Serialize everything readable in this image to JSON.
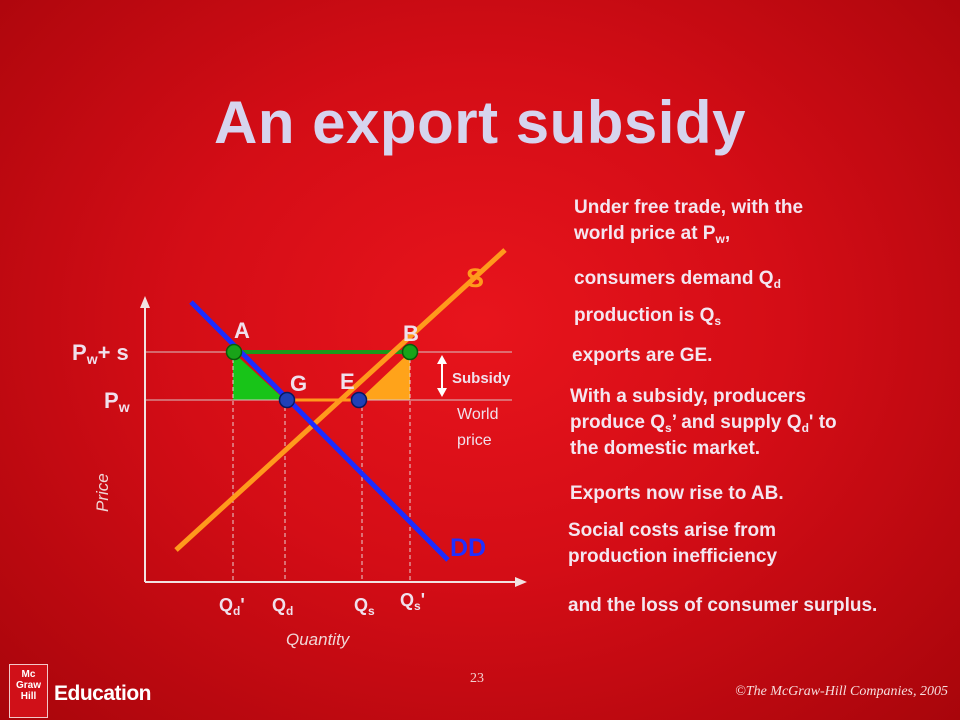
{
  "slide": {
    "title": "An export subsidy",
    "page_number": "23",
    "copyright": "©The McGraw-Hill Companies, 2005",
    "logo_lines": [
      "Mc",
      "Graw",
      "Hill"
    ],
    "logo_text": "Education"
  },
  "notes": [
    [
      "Under free trade, with the",
      "world price at P",
      "w",
      ","
    ],
    [
      "consumers demand Q",
      "d"
    ],
    [
      "production is Q",
      "s"
    ],
    [
      "exports are GE."
    ],
    [
      "With a subsidy, producers",
      "produce Q",
      "s",
      "’ and  supply Q",
      "d",
      "' to",
      "the domestic market."
    ],
    [
      "Exports now rise to AB."
    ],
    [
      "Social costs arise from",
      "production inefficiency"
    ],
    [
      "and the loss of consumer surplus."
    ]
  ],
  "diagram": {
    "curves": {
      "supply": "S",
      "demand": "DD"
    },
    "axes": {
      "x": "Quantity",
      "y": "Price"
    },
    "price_levels": [
      {
        "base": "P",
        "sub": "w",
        "suffix": "+ s"
      },
      {
        "base": "P",
        "sub": "w",
        "suffix": ""
      }
    ],
    "points": [
      "A",
      "B",
      "G",
      "E"
    ],
    "annotations": {
      "subsidy": "Subsidy",
      "world_1": "World",
      "world_2": "price"
    },
    "quantities": [
      {
        "base": "Q",
        "sub": "d",
        "suffix": "'"
      },
      {
        "base": "Q",
        "sub": "d",
        "suffix": ""
      },
      {
        "base": "Q",
        "sub": "s",
        "suffix": ""
      },
      {
        "base": "Q",
        "sub": "s",
        "suffix": "'"
      }
    ],
    "colors": {
      "supply": "#ff9a1c",
      "demand": "#1c2cff",
      "green": "#18b418",
      "orange": "#ffa31a",
      "point_fill_top": "#19a319",
      "point_fill_bottom": "#2040b8"
    }
  }
}
